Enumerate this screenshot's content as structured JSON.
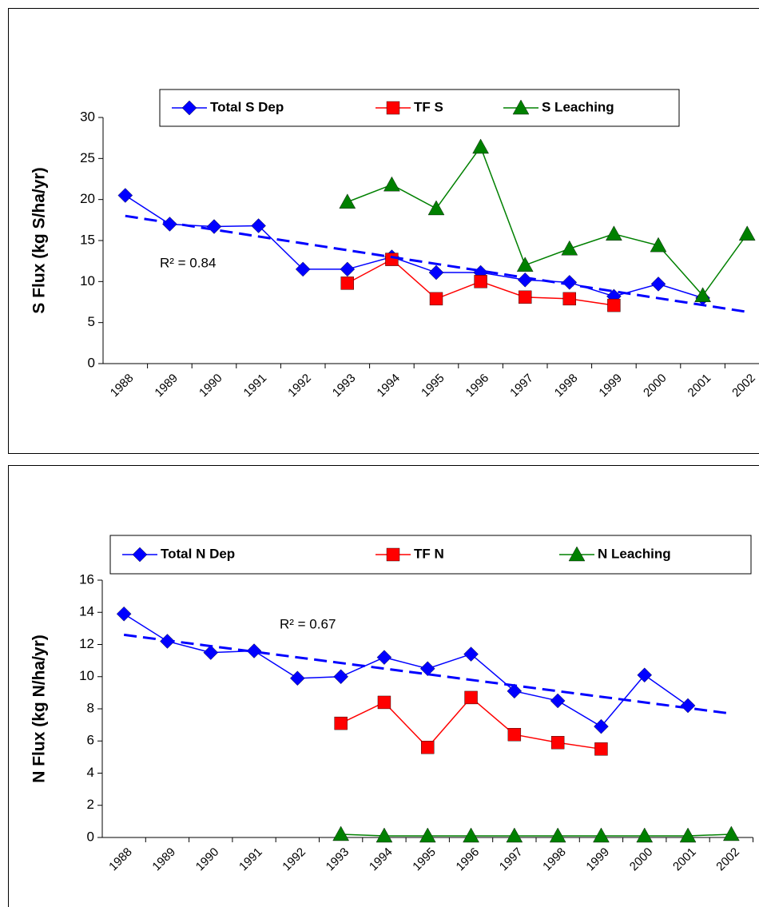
{
  "chart_data": [
    {
      "type": "line",
      "y_label": "S Flux (kg S/ha/yr)",
      "categories": [
        "1988",
        "1989",
        "1990",
        "1991",
        "1992",
        "1993",
        "1994",
        "1995",
        "1996",
        "1997",
        "1998",
        "1999",
        "2000",
        "2001",
        "2002"
      ],
      "ylim": [
        0,
        30
      ],
      "yticks": [
        0,
        5,
        10,
        15,
        20,
        25,
        30
      ],
      "series": [
        {
          "name": "Total S Dep",
          "color": "#0000ff",
          "marker": "diamond",
          "values": [
            20.5,
            17,
            16.7,
            16.8,
            11.5,
            11.5,
            13,
            11.1,
            11.1,
            10.2,
            9.9,
            8.2,
            9.7,
            8,
            null
          ]
        },
        {
          "name": "TF S",
          "color": "#ff0000",
          "marker": "square",
          "values": [
            null,
            null,
            null,
            null,
            null,
            9.8,
            12.7,
            7.9,
            10,
            8.1,
            7.9,
            7.1,
            null,
            null,
            null
          ]
        },
        {
          "name": "S Leaching",
          "color": "#008000",
          "marker": "triangle",
          "values": [
            null,
            null,
            null,
            null,
            null,
            19.7,
            21.8,
            18.9,
            26.4,
            12,
            14,
            15.8,
            14.4,
            8.3,
            15.8
          ]
        }
      ],
      "trendline": {
        "color": "#0000ff",
        "values": [
          18,
          6.3
        ]
      },
      "annotation": "R² = 0.84"
    },
    {
      "type": "line",
      "y_label": "N Flux (kg N/ha/yr)",
      "categories": [
        "1988",
        "1989",
        "1990",
        "1991",
        "1992",
        "1993",
        "1994",
        "1995",
        "1996",
        "1997",
        "1998",
        "1999",
        "2000",
        "2001",
        "2002"
      ],
      "ylim": [
        0,
        16
      ],
      "yticks": [
        0,
        2,
        4,
        6,
        8,
        10,
        12,
        14,
        16
      ],
      "series": [
        {
          "name": "Total N Dep",
          "color": "#0000ff",
          "marker": "diamond",
          "values": [
            13.9,
            12.2,
            11.5,
            11.6,
            9.9,
            10,
            11.2,
            10.5,
            11.4,
            9.1,
            8.5,
            6.9,
            10.1,
            8.2,
            null
          ]
        },
        {
          "name": "TF N",
          "color": "#ff0000",
          "marker": "square",
          "values": [
            null,
            null,
            null,
            null,
            null,
            7.1,
            8.4,
            5.6,
            8.7,
            6.4,
            5.9,
            5.5,
            null,
            null,
            null
          ]
        },
        {
          "name": "N Leaching",
          "color": "#008000",
          "marker": "triangle",
          "values": [
            null,
            null,
            null,
            null,
            null,
            0.2,
            0.1,
            0.1,
            0.1,
            0.1,
            0.1,
            0.1,
            0.1,
            0.1,
            0.2
          ]
        }
      ],
      "trendline": {
        "color": "#0000ff",
        "values": [
          12.6,
          7.7
        ]
      },
      "annotation": "R² = 0.67"
    }
  ]
}
